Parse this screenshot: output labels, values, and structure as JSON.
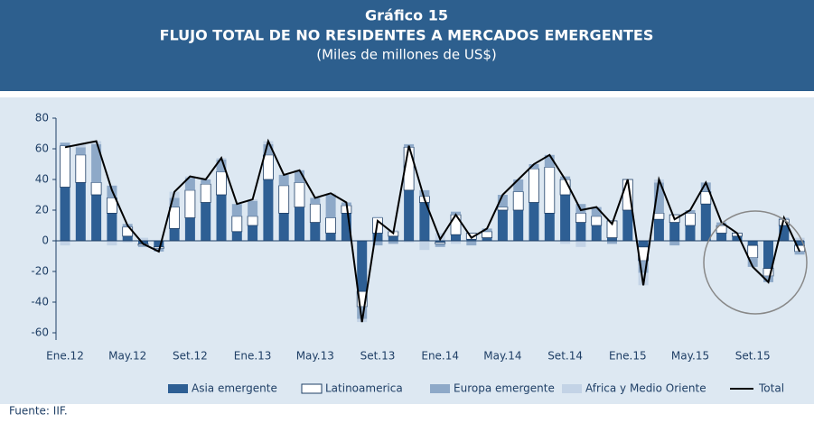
{
  "chart_data": {
    "type": "bar",
    "stacked": true,
    "title": "Gráfico 15",
    "subtitle": "FLUJO TOTAL DE NO RESIDENTES A MERCADOS EMERGENTES",
    "units": "(Miles de millones de US$)",
    "source": "Fuente: IIF.",
    "categories": [
      "Ene.12",
      null,
      null,
      null,
      "May.12",
      null,
      null,
      null,
      "Set.12",
      null,
      null,
      null,
      "Ene.13",
      null,
      null,
      null,
      "May.13",
      null,
      null,
      null,
      "Set.13",
      null,
      null,
      null,
      "Ene.14",
      null,
      null,
      null,
      "May.14",
      null,
      null,
      null,
      "Set.14",
      null,
      null,
      null,
      "Ene.15",
      null,
      null,
      null,
      "May.15",
      null,
      null,
      null,
      "Set.15",
      null,
      null,
      null
    ],
    "series": [
      {
        "name": "Asia emergente",
        "color": "#2e5f94",
        "values": [
          35,
          38,
          30,
          18,
          3,
          -2,
          -4,
          8,
          15,
          25,
          30,
          6,
          10,
          40,
          18,
          22,
          12,
          5,
          18,
          -33,
          5,
          3,
          33,
          25,
          -1,
          4,
          1,
          2,
          20,
          20,
          25,
          18,
          30,
          12,
          10,
          2,
          20,
          -4,
          14,
          12,
          10,
          24,
          5,
          3,
          -3,
          -18,
          10,
          -3
        ]
      },
      {
        "name": "Latinoamerica",
        "color": "#ffffff",
        "values": [
          27,
          18,
          8,
          10,
          6,
          -1,
          -1,
          14,
          18,
          12,
          15,
          10,
          6,
          16,
          18,
          16,
          12,
          10,
          5,
          -10,
          10,
          3,
          28,
          4,
          -1,
          13,
          4,
          4,
          2,
          12,
          22,
          30,
          10,
          6,
          6,
          11,
          20,
          -9,
          4,
          5,
          8,
          8,
          5,
          2,
          -8,
          -5,
          4,
          -4
        ]
      },
      {
        "name": "Europa emergente",
        "color": "#8ea9c8",
        "values": [
          2,
          5,
          25,
          8,
          2,
          -1,
          -2,
          6,
          8,
          3,
          8,
          8,
          10,
          7,
          7,
          8,
          4,
          15,
          2,
          -8,
          -3,
          -2,
          2,
          4,
          -2,
          2,
          -3,
          2,
          8,
          8,
          3,
          8,
          2,
          6,
          6,
          -2,
          0,
          -8,
          20,
          -3,
          2,
          6,
          2,
          0,
          -6,
          -4,
          1,
          -2
        ]
      },
      {
        "name": "Africa y Medio Oriente",
        "color": "#c3d3e6",
        "values": [
          -3,
          2,
          2,
          -3,
          -1,
          2,
          0,
          4,
          1,
          0,
          1,
          0,
          1,
          2,
          0,
          0,
          0,
          1,
          0,
          -2,
          1,
          1,
          -1,
          -6,
          5,
          -2,
          0,
          0,
          0,
          0,
          0,
          0,
          -2,
          -4,
          0,
          0,
          0,
          -8,
          2,
          0,
          0,
          0,
          0,
          0,
          0,
          0,
          0,
          2
        ]
      },
      {
        "name": "Total",
        "type": "line",
        "color": "#000000",
        "values": [
          61,
          63,
          65,
          33,
          10,
          -2,
          -7,
          32,
          42,
          40,
          54,
          24,
          27,
          65,
          43,
          46,
          28,
          31,
          25,
          -53,
          13,
          5,
          62,
          27,
          1,
          17,
          2,
          8,
          30,
          40,
          50,
          56,
          40,
          20,
          22,
          11,
          40,
          -29,
          40,
          14,
          20,
          38,
          12,
          5,
          -17,
          -27,
          15,
          -7
        ]
      }
    ],
    "ylim": [
      -60,
      80
    ],
    "yticks": [
      -60,
      -40,
      -20,
      0,
      20,
      40,
      60,
      80
    ],
    "legend": "bottom"
  }
}
